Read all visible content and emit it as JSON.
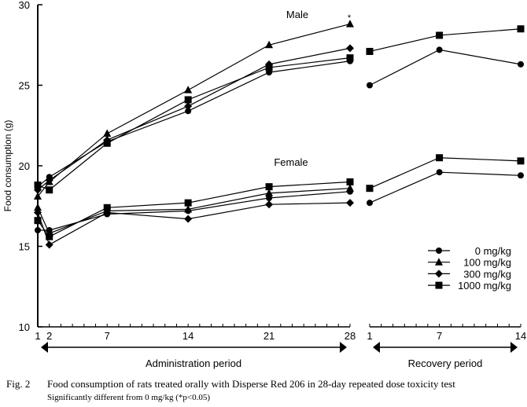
{
  "chart_data": {
    "type": "line",
    "title": "",
    "ylabel": "Food consumption (g)",
    "ylim": [
      10,
      30
    ],
    "yticks": [
      10,
      15,
      20,
      25,
      30
    ],
    "grid": false,
    "legend_position": "right",
    "legend": [
      {
        "name": "0 mg/kg",
        "marker": "circle"
      },
      {
        "name": "100 mg/kg",
        "marker": "triangle"
      },
      {
        "name": "300 mg/kg",
        "marker": "diamond"
      },
      {
        "name": "1000 mg/kg",
        "marker": "square"
      }
    ],
    "panels": [
      {
        "name": "administration",
        "period_label": "Administration period",
        "xlim": [
          1,
          28
        ],
        "xticks_labeled": [
          1,
          2,
          7,
          14,
          21,
          28
        ],
        "x": [
          1,
          2,
          7,
          14,
          21,
          28
        ],
        "series": [
          {
            "sex": "Male",
            "name": "0 mg/kg",
            "marker": "circle",
            "values": [
              18.7,
              19.3,
              21.5,
              23.4,
              25.8,
              26.5
            ]
          },
          {
            "sex": "Male",
            "name": "100 mg/kg",
            "marker": "triangle",
            "values": [
              18.1,
              19.0,
              22.0,
              24.7,
              27.5,
              28.8
            ]
          },
          {
            "sex": "Male",
            "name": "300 mg/kg",
            "marker": "diamond",
            "values": [
              18.5,
              19.1,
              21.6,
              23.7,
              26.3,
              27.3
            ]
          },
          {
            "sex": "Male",
            "name": "1000 mg/kg",
            "marker": "square",
            "values": [
              18.8,
              18.5,
              21.4,
              24.1,
              26.1,
              26.7
            ]
          },
          {
            "sex": "Female",
            "name": "0 mg/kg",
            "marker": "circle",
            "values": [
              16.0,
              16.0,
              17.0,
              17.2,
              18.0,
              18.4
            ]
          },
          {
            "sex": "Female",
            "name": "100 mg/kg",
            "marker": "triangle",
            "values": [
              17.4,
              15.8,
              17.2,
              17.3,
              18.3,
              18.6
            ]
          },
          {
            "sex": "Female",
            "name": "300 mg/kg",
            "marker": "diamond",
            "values": [
              17.1,
              15.1,
              17.1,
              16.7,
              17.6,
              17.7
            ]
          },
          {
            "sex": "Female",
            "name": "1000 mg/kg",
            "marker": "square",
            "values": [
              16.6,
              15.6,
              17.4,
              17.7,
              18.7,
              19.0
            ]
          }
        ],
        "annotations": [
          {
            "text": "*",
            "x": 28,
            "series": "Male 100 mg/kg"
          }
        ]
      },
      {
        "name": "recovery",
        "period_label": "Recovery period",
        "xlim": [
          1,
          14
        ],
        "xticks_labeled": [
          1,
          7,
          14
        ],
        "x": [
          1,
          7,
          14
        ],
        "series": [
          {
            "sex": "Male",
            "name": "0 mg/kg",
            "marker": "circle",
            "values": [
              25.0,
              27.2,
              26.3
            ]
          },
          {
            "sex": "Male",
            "name": "1000 mg/kg",
            "marker": "square",
            "values": [
              27.1,
              28.1,
              28.5
            ]
          },
          {
            "sex": "Female",
            "name": "0 mg/kg",
            "marker": "circle",
            "values": [
              17.7,
              19.6,
              19.4
            ]
          },
          {
            "sex": "Female",
            "name": "1000 mg/kg",
            "marker": "square",
            "values": [
              18.6,
              20.5,
              20.3
            ]
          }
        ]
      }
    ],
    "group_labels": [
      "Male",
      "Female"
    ]
  },
  "caption": {
    "fig_number": "Fig. 2",
    "text": "Food consumption of rats treated orally with Disperse Red 206 in 28-day repeated dose toxicity test",
    "note": "Significantly different from 0 mg/kg (*p<0.05)"
  }
}
